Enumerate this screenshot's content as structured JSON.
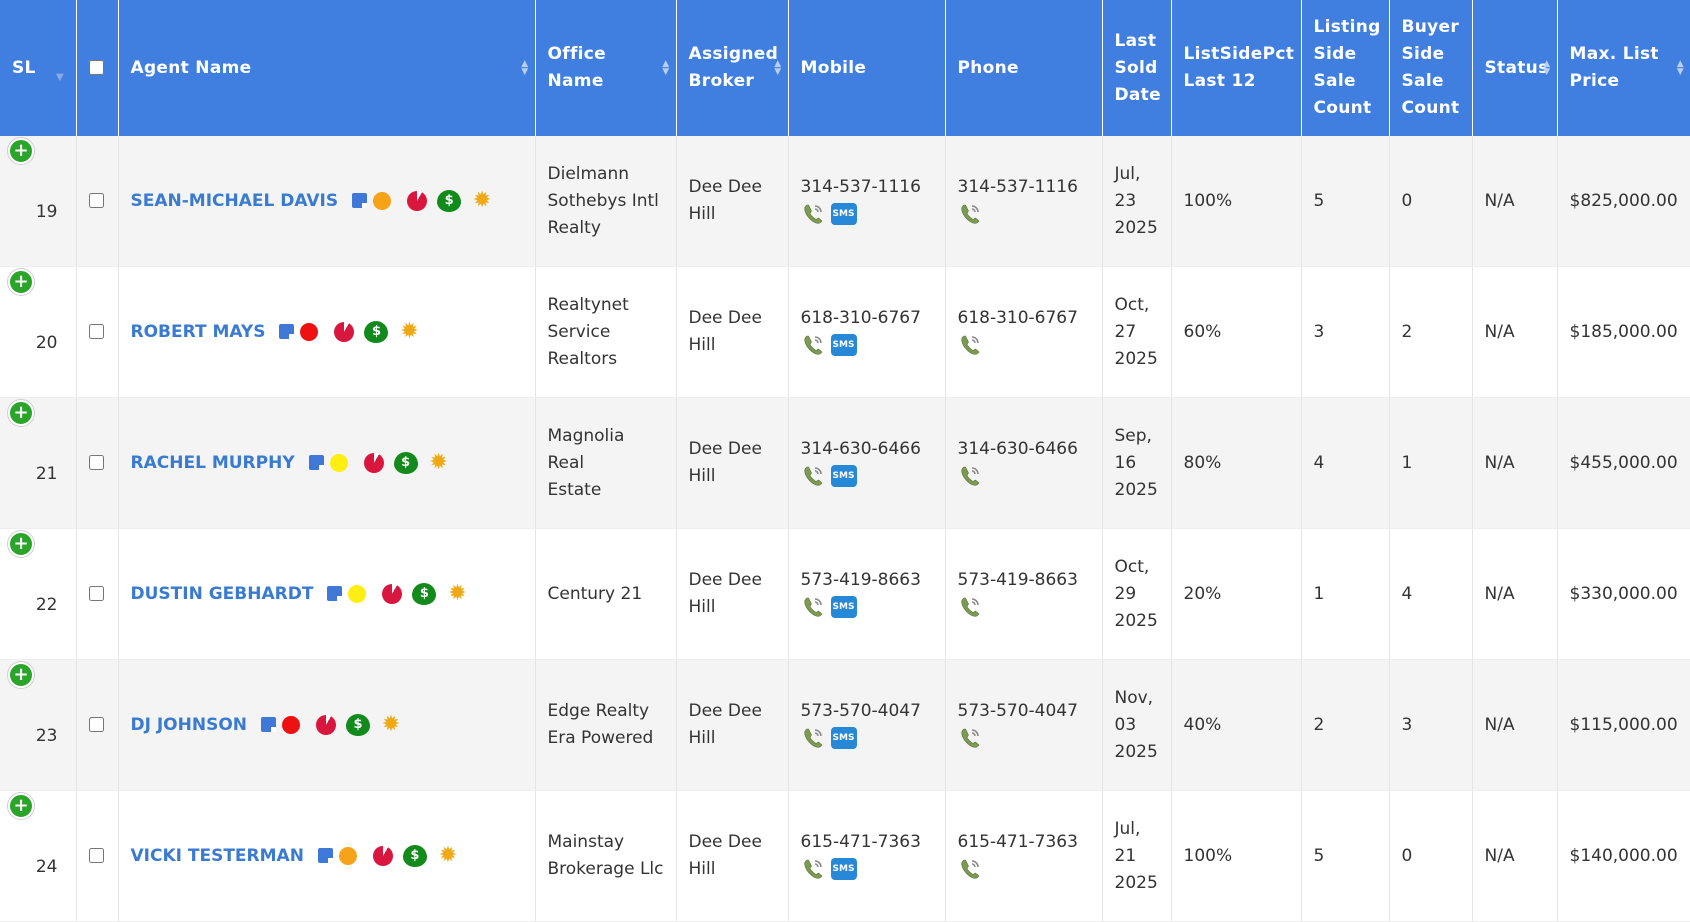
{
  "columns": {
    "sl": "SL",
    "agent_name": "Agent Name",
    "office_name": "Office Name",
    "assigned_broker_1": "Assigned",
    "assigned_broker_2": "Broker",
    "mobile": "Mobile",
    "phone": "Phone",
    "last_sold_1": "Last",
    "last_sold_2": "Sold",
    "last_sold_3": "Date",
    "listside_1": "ListSidePct",
    "listside_2": "Last 12",
    "listing_1": "Listing",
    "listing_2": "Side",
    "listing_3": "Sale",
    "listing_4": "Count",
    "buyer_1": "Buyer",
    "buyer_2": "Side",
    "buyer_3": "Sale",
    "buyer_4": "Count",
    "status": "Status",
    "maxlist_1": "Max. List",
    "maxlist_2": "Price"
  },
  "icons": {
    "expand": "+",
    "dollar": "$",
    "sun": "✹",
    "sms": "SMS"
  },
  "colors": {
    "header_bg": "#407fe0",
    "agent_link": "#3a7bd0",
    "dot_orange": "#f7a31a",
    "dot_red": "#ee1111",
    "dot_yellow": "#ffee11"
  },
  "rows": [
    {
      "sl": "19",
      "agent": "SEAN-MICHAEL DAVIS",
      "dot": "#f7a31a",
      "office": [
        "Dielmann",
        "Sothebys Intl",
        "Realty"
      ],
      "broker": [
        "Dee Dee",
        "Hill"
      ],
      "mobile": "314-537-1116",
      "phone": "314-537-1116",
      "date": [
        "Jul,",
        "23",
        "2025"
      ],
      "pct": "100%",
      "listing": "5",
      "buyer": "0",
      "status": "N/A",
      "price": "$825,000.00"
    },
    {
      "sl": "20",
      "agent": "ROBERT MAYS",
      "dot": "#ee1111",
      "office": [
        "Realtynet",
        "Service",
        "Realtors"
      ],
      "broker": [
        "Dee Dee",
        "Hill"
      ],
      "mobile": "618-310-6767",
      "phone": "618-310-6767",
      "date": [
        "Oct,",
        "27",
        "2025"
      ],
      "pct": "60%",
      "listing": "3",
      "buyer": "2",
      "status": "N/A",
      "price": "$185,000.00"
    },
    {
      "sl": "21",
      "agent": "RACHEL MURPHY",
      "dot": "#ffee11",
      "office": [
        "Magnolia Real",
        "Estate"
      ],
      "broker": [
        "Dee Dee",
        "Hill"
      ],
      "mobile": "314-630-6466",
      "phone": "314-630-6466",
      "date": [
        "Sep,",
        "16",
        "2025"
      ],
      "pct": "80%",
      "listing": "4",
      "buyer": "1",
      "status": "N/A",
      "price": "$455,000.00"
    },
    {
      "sl": "22",
      "agent": "DUSTIN GEBHARDT",
      "dot": "#ffee11",
      "office": [
        "Century 21"
      ],
      "broker": [
        "Dee Dee",
        "Hill"
      ],
      "mobile": "573-419-8663",
      "phone": "573-419-8663",
      "date": [
        "Oct,",
        "29",
        "2025"
      ],
      "pct": "20%",
      "listing": "1",
      "buyer": "4",
      "status": "N/A",
      "price": "$330,000.00"
    },
    {
      "sl": "23",
      "agent": "DJ JOHNSON",
      "dot": "#ee1111",
      "office": [
        "Edge Realty",
        "Era Powered"
      ],
      "broker": [
        "Dee Dee",
        "Hill"
      ],
      "mobile": "573-570-4047",
      "phone": "573-570-4047",
      "date": [
        "Nov,",
        "03",
        "2025"
      ],
      "pct": "40%",
      "listing": "2",
      "buyer": "3",
      "status": "N/A",
      "price": "$115,000.00"
    },
    {
      "sl": "24",
      "agent": "VICKI TESTERMAN",
      "dot": "#f7a31a",
      "office": [
        "Mainstay",
        "Brokerage Llc"
      ],
      "broker": [
        "Dee Dee",
        "Hill"
      ],
      "mobile": "615-471-7363",
      "phone": "615-471-7363",
      "date": [
        "Jul,",
        "21",
        "2025"
      ],
      "pct": "100%",
      "listing": "5",
      "buyer": "0",
      "status": "N/A",
      "price": "$140,000.00"
    }
  ]
}
